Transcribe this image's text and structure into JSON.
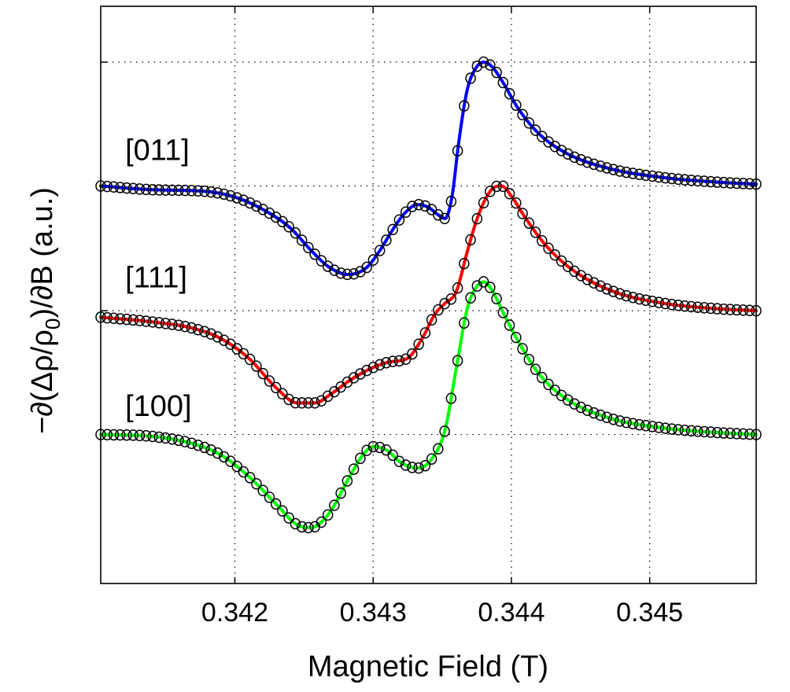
{
  "chart_data": {
    "type": "line",
    "title": "",
    "xlabel": "Magnetic Field (T)",
    "ylabel_main": "−∂(Δρ/ρ",
    "ylabel_sub": "0",
    "ylabel_tail": ")/∂B (a.u.)",
    "xlim": [
      0.34103,
      0.34577
    ],
    "ylim": [
      -2.6,
      3.6
    ],
    "xticks": [
      {
        "value": 0.342,
        "label": "0.342"
      },
      {
        "value": 0.343,
        "label": "0.343"
      },
      {
        "value": 0.344,
        "label": "0.344"
      },
      {
        "value": 0.345,
        "label": "0.345"
      }
    ],
    "ygrid": [
      3.0,
      1.67,
      0.33,
      -1.0
    ],
    "grid": true,
    "fit_markers": "open circles",
    "series": [
      {
        "name": "[011]",
        "color": "#0000ff",
        "label_x": 0.34115,
        "label_y": 1.95,
        "marker_offset": 1.67,
        "x": [
          0.34103,
          0.3414,
          0.3418,
          0.342,
          0.3422,
          0.3424,
          0.34255,
          0.34268,
          0.34282,
          0.34295,
          0.34305,
          0.34315,
          0.34323,
          0.34332,
          0.3434,
          0.34347,
          0.34352,
          0.34357,
          0.34362,
          0.34368,
          0.34374,
          0.3438,
          0.34386,
          0.34394,
          0.34405,
          0.3442,
          0.3444,
          0.3447,
          0.3451,
          0.3455,
          0.34577
        ],
        "y": [
          1.67,
          1.63,
          1.61,
          1.55,
          1.42,
          1.22,
          0.98,
          0.8,
          0.72,
          0.79,
          0.98,
          1.22,
          1.38,
          1.47,
          1.44,
          1.36,
          1.32,
          1.55,
          2.15,
          2.7,
          2.93,
          3.0,
          2.95,
          2.78,
          2.5,
          2.23,
          2.02,
          1.86,
          1.76,
          1.71,
          1.69
        ]
      },
      {
        "name": "[111]",
        "color": "#ff0000",
        "label_x": 0.34115,
        "label_y": 0.58,
        "marker_offset": 0.33,
        "x": [
          0.34103,
          0.3414,
          0.3417,
          0.3419,
          0.3421,
          0.3423,
          0.34245,
          0.34258,
          0.3427,
          0.34285,
          0.343,
          0.34312,
          0.34325,
          0.34335,
          0.34345,
          0.34352,
          0.3436,
          0.34368,
          0.34375,
          0.34382,
          0.34388,
          0.34393,
          0.344,
          0.3441,
          0.34425,
          0.34445,
          0.34475,
          0.3451,
          0.3455,
          0.34577
        ],
        "y": [
          0.26,
          0.21,
          0.14,
          0.03,
          -0.18,
          -0.5,
          -0.66,
          -0.66,
          -0.56,
          -0.4,
          -0.28,
          -0.22,
          -0.18,
          0.02,
          0.3,
          0.41,
          0.53,
          0.96,
          1.31,
          1.55,
          1.66,
          1.67,
          1.56,
          1.33,
          1.03,
          0.76,
          0.53,
          0.41,
          0.35,
          0.33
        ]
      },
      {
        "name": "[100]",
        "color": "#00ff00",
        "label_x": 0.34115,
        "label_y": -0.8,
        "marker_offset": -1.0,
        "x": [
          0.34103,
          0.3414,
          0.3417,
          0.3419,
          0.3421,
          0.3423,
          0.34245,
          0.34255,
          0.34268,
          0.34282,
          0.34292,
          0.343,
          0.3431,
          0.3432,
          0.34332,
          0.34342,
          0.34352,
          0.3436,
          0.34368,
          0.34374,
          0.3438,
          0.34386,
          0.34394,
          0.34405,
          0.3442,
          0.3444,
          0.3447,
          0.3451,
          0.3455,
          0.34577
        ],
        "y": [
          -1.0,
          -1.02,
          -1.1,
          -1.22,
          -1.45,
          -1.75,
          -1.97,
          -2.0,
          -1.85,
          -1.48,
          -1.23,
          -1.13,
          -1.17,
          -1.3,
          -1.36,
          -1.27,
          -0.95,
          -0.3,
          0.35,
          0.57,
          0.64,
          0.55,
          0.31,
          0.0,
          -0.35,
          -0.62,
          -0.82,
          -0.93,
          -0.98,
          -1.0
        ]
      }
    ]
  }
}
